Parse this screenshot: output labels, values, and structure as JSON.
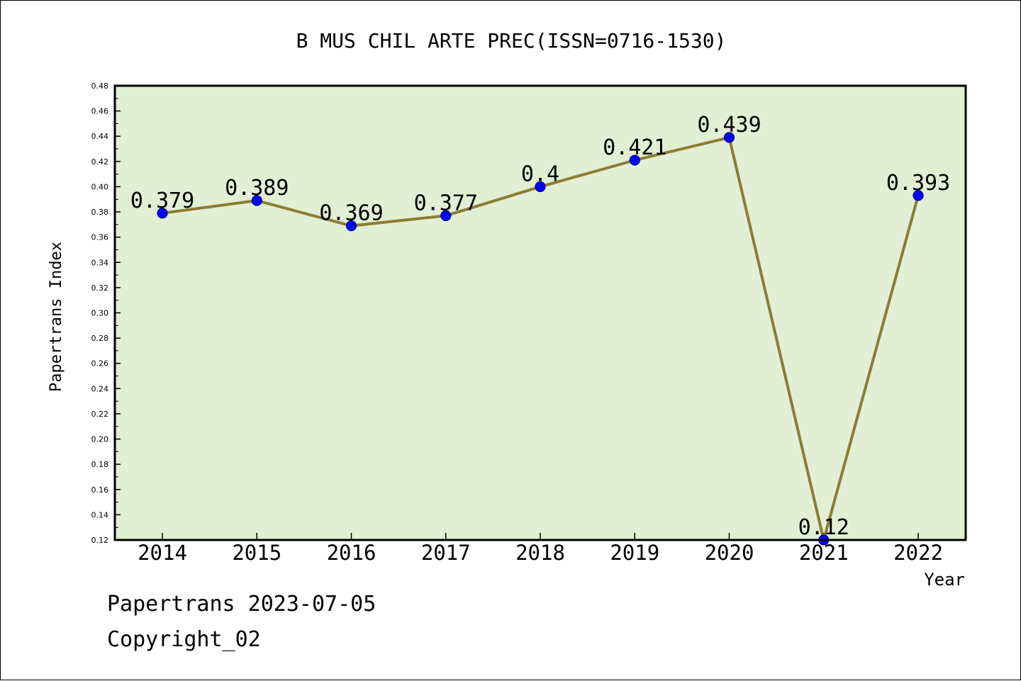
{
  "chart_data": {
    "type": "line",
    "title": "B MUS CHIL ARTE PREC(ISSN=0716-1530)",
    "xlabel": "Year",
    "ylabel": "Papertrans Index",
    "categories": [
      "2014",
      "2015",
      "2016",
      "2017",
      "2018",
      "2019",
      "2020",
      "2021",
      "2022"
    ],
    "series": [
      {
        "values": [
          0.379,
          0.389,
          0.369,
          0.377,
          0.4,
          0.421,
          0.439,
          0.12,
          0.393
        ],
        "labels": [
          "0.379",
          "0.389",
          "0.369",
          "0.377",
          "0.4",
          "0.421",
          "0.439",
          "0.12",
          "0.393"
        ]
      }
    ],
    "ylim": [
      0.12,
      0.48
    ],
    "yticks": [
      "0.12",
      "0.14",
      "0.16",
      "0.18",
      "0.20",
      "0.22",
      "0.24",
      "0.26",
      "0.28",
      "0.30",
      "0.32",
      "0.34",
      "0.36",
      "0.38",
      "0.40",
      "0.42",
      "0.44",
      "0.46",
      "0.48"
    ],
    "grid": false,
    "colors": {
      "plot_background": "#e2efd4",
      "line": "#8b7d34",
      "marker": "#0000ff",
      "marker_edge": "#00008b"
    }
  },
  "footer": {
    "source": "Papertrans 2023-07-05",
    "copyright": "Copyright_02"
  }
}
